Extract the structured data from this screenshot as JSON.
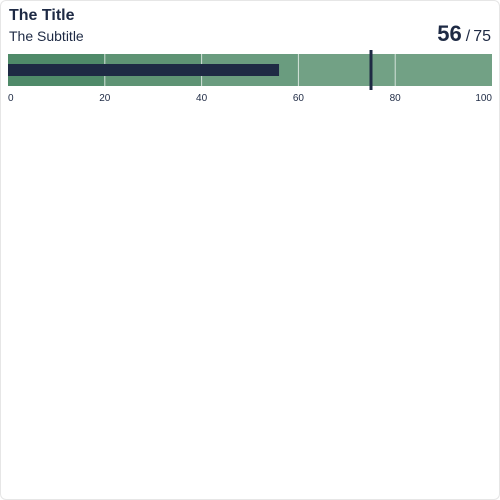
{
  "header": {
    "title": "The Title",
    "subtitle": "The Subtitle",
    "value_text": "56",
    "separator": "/",
    "target_text": "75"
  },
  "colors": {
    "range_band_1": "#4f8a69",
    "range_band_2": "#5e9374",
    "range_band_3": "#6a9c7f",
    "range_band_4": "#72a185",
    "measure_bar": "#1e2a44",
    "target_marker": "#1e2a44",
    "gridline": "#ffffff",
    "text": "#1e2a44"
  },
  "chart_data": {
    "type": "bullet",
    "title": "The Title",
    "subtitle": "The Subtitle",
    "orientation": "horizontal",
    "xlim": [
      0,
      100
    ],
    "ranges": [
      20,
      40,
      60,
      100
    ],
    "measure": 56,
    "target": 75,
    "ticks": [
      0,
      20,
      40,
      60,
      80,
      100
    ],
    "tick_labels": [
      "0",
      "20",
      "40",
      "60",
      "80",
      "100"
    ],
    "grid": true
  }
}
